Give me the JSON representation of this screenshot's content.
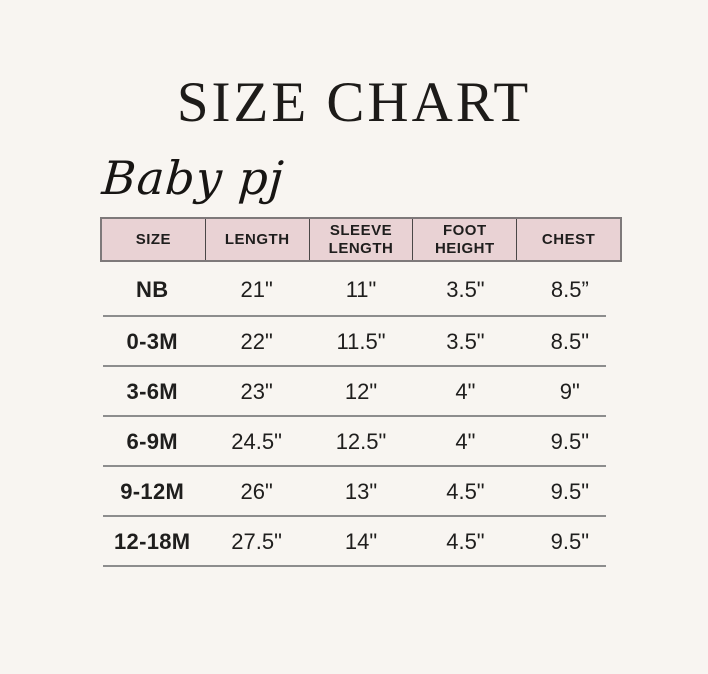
{
  "page": {
    "background": "#f8f5f1"
  },
  "header": {
    "title": "SIZE CHART"
  },
  "brand": {
    "name": "Baby pj"
  },
  "size_table": {
    "columns": [
      "SIZE",
      "LENGTH",
      "SLEEVE LENGTH",
      "FOOT HEIGHT",
      "CHEST"
    ],
    "row_keys": [
      "size",
      "length",
      "sleeve_length",
      "foot_height",
      "chest"
    ],
    "rows": [
      {
        "size": "NB",
        "length": "21\"",
        "sleeve_length": "11\"",
        "foot_height": "3.5\"",
        "chest": "8.5”"
      },
      {
        "size": "0-3M",
        "length": "22\"",
        "sleeve_length": "11.5\"",
        "foot_height": "3.5\"",
        "chest": "8.5\""
      },
      {
        "size": "3-6M",
        "length": "23\"",
        "sleeve_length": "12\"",
        "foot_height": "4\"",
        "chest": "9\""
      },
      {
        "size": "6-9M",
        "length": "24.5\"",
        "sleeve_length": "12.5\"",
        "foot_height": "4\"",
        "chest": "9.5\""
      },
      {
        "size": "9-12M",
        "length": "26\"",
        "sleeve_length": "13\"",
        "foot_height": "4.5\"",
        "chest": "9.5\""
      },
      {
        "size": "12-18M",
        "length": "27.5\"",
        "sleeve_length": "14\"",
        "foot_height": "4.5\"",
        "chest": "9.5\""
      }
    ],
    "colors": {
      "page_bg": "#f8f5f1",
      "header_bg": "#e9d2d4",
      "header_border": "#7e797a",
      "divider": "#4a4747",
      "row_line": "#8d8d8d",
      "text": "#1f1e1d"
    }
  },
  "chart_data": {
    "type": "table",
    "title": "SIZE CHART",
    "subtitle": "Baby pj",
    "columns": [
      "SIZE",
      "LENGTH",
      "SLEEVE LENGTH",
      "FOOT HEIGHT",
      "CHEST"
    ],
    "rows": [
      [
        "NB",
        "21\"",
        "11\"",
        "3.5\"",
        "8.5”"
      ],
      [
        "0-3M",
        "22\"",
        "11.5\"",
        "3.5\"",
        "8.5\""
      ],
      [
        "3-6M",
        "23\"",
        "12\"",
        "4\"",
        "9\""
      ],
      [
        "6-9M",
        "24.5\"",
        "12.5\"",
        "4\"",
        "9.5\""
      ],
      [
        "9-12M",
        "26\"",
        "13\"",
        "4.5\"",
        "9.5\""
      ],
      [
        "12-18M",
        "27.5\"",
        "14\"",
        "4.5\"",
        "9.5\""
      ]
    ],
    "layout": {
      "header_background": "#e9d2d4",
      "row_separators": true,
      "units": "inches"
    }
  }
}
